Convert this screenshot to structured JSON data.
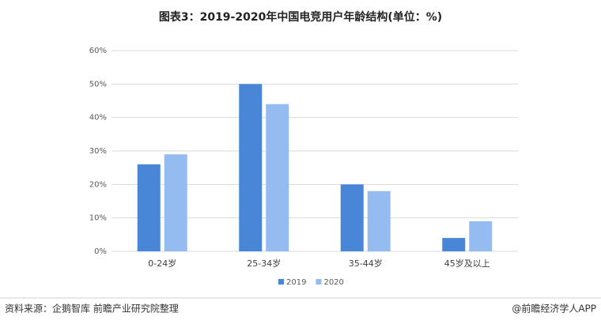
{
  "chart_data": {
    "type": "bar",
    "title": "图表3：2019-2020年中国电竞用户年龄结构(单位：%)",
    "categories": [
      "0-24岁",
      "25-34岁",
      "35-44岁",
      "45岁及以上"
    ],
    "series": [
      {
        "name": "2019",
        "color": "#4a86d8",
        "values": [
          26,
          50,
          20,
          4
        ]
      },
      {
        "name": "2020",
        "color": "#94bcf0",
        "values": [
          29,
          44,
          18,
          9
        ]
      }
    ],
    "ylim": [
      0,
      60
    ],
    "yticks": [
      {
        "value": 0,
        "label": "0%"
      },
      {
        "value": 10,
        "label": "10%"
      },
      {
        "value": 20,
        "label": "20%"
      },
      {
        "value": 30,
        "label": "30%"
      },
      {
        "value": 40,
        "label": "40%"
      },
      {
        "value": 50,
        "label": "50%"
      },
      {
        "value": 60,
        "label": "60%"
      }
    ],
    "grid": true,
    "legend": "bottom",
    "source": "资料来源：企鹅智库 前瞻产业研究院整理",
    "credit": "@前瞻经济学人APP"
  }
}
